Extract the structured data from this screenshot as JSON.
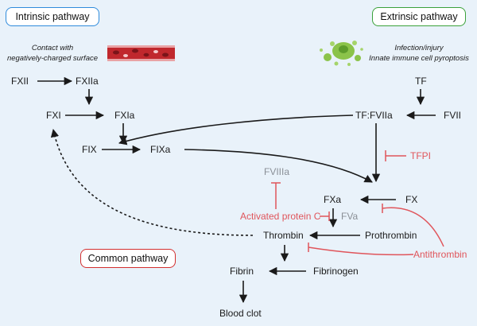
{
  "pathways": {
    "intrinsic": {
      "label": "Intrinsic pathway",
      "color": "#2e8bdc"
    },
    "extrinsic": {
      "label": "Extrinsic pathway",
      "color": "#3aa13a"
    },
    "common": {
      "label": "Common pathway",
      "color": "#d32f2f"
    }
  },
  "notes": {
    "contact_line1": "Contact with",
    "contact_line2": "negatively-charged surface",
    "infection_line1": "Infection/injury",
    "infection_line2": "Innate immune cell pyroptosis"
  },
  "nodes": {
    "fxii": "FXII",
    "fxiia": "FXIIa",
    "fxi": "FXI",
    "fxia": "FXIa",
    "fix": "FIX",
    "fixa": "FIXa",
    "tf": "TF",
    "tf_fviia": "TF:FVIIa",
    "fvii": "FVII",
    "fx": "FX",
    "fxa": "FXa",
    "fva": "FVa",
    "fviiia": "FVIIIa",
    "prothrombin": "Prothrombin",
    "thrombin": "Thrombin",
    "fibrinogen": "Fibrinogen",
    "fibrin": "Fibrin",
    "blood_clot": "Blood clot"
  },
  "inhibitors": {
    "tfpi": "TFPI",
    "activated_protein_c": "Activated protein C",
    "antithrombin": "Antithrombin"
  },
  "colors": {
    "arrow": "#1a1a1a",
    "inhibition": "#e0555b",
    "cofactor": "#8a8f96",
    "background": "#e9f2fa"
  }
}
